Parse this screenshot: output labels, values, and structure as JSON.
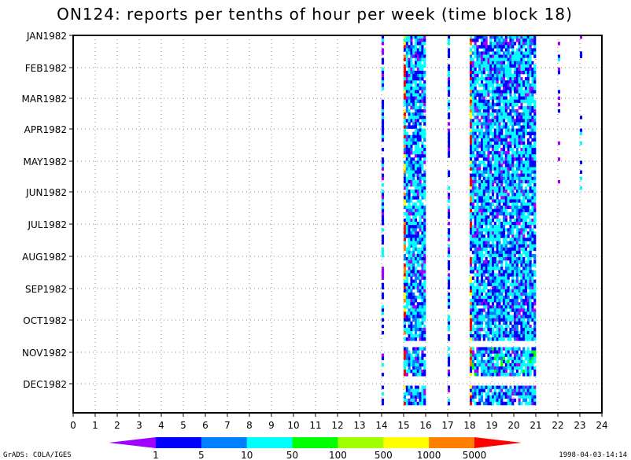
{
  "chart_data": {
    "type": "heatmap",
    "title": "ON124: reports per tenths of hour per week (time block 18)",
    "x_ticks": [
      "0",
      "1",
      "2",
      "3",
      "4",
      "5",
      "6",
      "7",
      "8",
      "9",
      "10",
      "11",
      "12",
      "13",
      "14",
      "15",
      "16",
      "17",
      "18",
      "19",
      "20",
      "21",
      "22",
      "23",
      "24"
    ],
    "xlim": [
      0,
      24
    ],
    "y_ticks": [
      "JAN1982",
      "FEB1982",
      "MAR1982",
      "APR1982",
      "MAY1982",
      "JUN1982",
      "JUL1982",
      "AUG1982",
      "SEP1982",
      "OCT1982",
      "NOV1982",
      "DEC1982"
    ],
    "grid": true,
    "colorbar": {
      "labels": [
        "1",
        "5",
        "10",
        "50",
        "100",
        "500",
        "1000",
        "5000"
      ],
      "colors": [
        "#a000ff",
        "#0000ff",
        "#0080ff",
        "#00ffff",
        "#00ff00",
        "#a0ff00",
        "#ffff00",
        "#ff8000",
        "#ff0000"
      ]
    },
    "bands": [
      {
        "x_start": 14.0,
        "x_end": 14.1,
        "density": "sparse"
      },
      {
        "x_start": 15.0,
        "x_end": 16.0,
        "density": "dense"
      },
      {
        "x_start": 17.0,
        "x_end": 17.1,
        "density": "sparse"
      },
      {
        "x_start": 18.0,
        "x_end": 21.0,
        "density": "dense"
      },
      {
        "x_start": 22.0,
        "x_end": 22.1,
        "density": "sparse"
      },
      {
        "x_start": 23.0,
        "x_end": 23.1,
        "density": "sparse"
      }
    ]
  },
  "footer": {
    "left": "GrADS: COLA/IGES",
    "right": "1998-04-03-14:14"
  }
}
